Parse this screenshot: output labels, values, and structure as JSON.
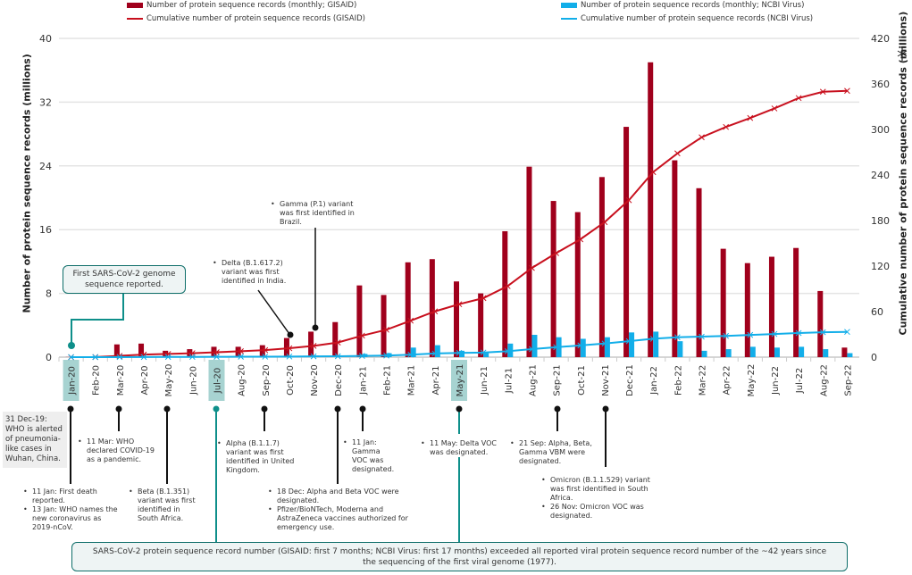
{
  "chart_data": {
    "type": "bar",
    "categories": [
      "Jan-20",
      "Feb-20",
      "Mar-20",
      "Apr-20",
      "May-20",
      "Jun-20",
      "Jul-20",
      "Aug-20",
      "Sep-20",
      "Oct-20",
      "Nov-20",
      "Dec-20",
      "Jan-21",
      "Feb-21",
      "Mar-21",
      "Apr-21",
      "May-21",
      "Jun-21",
      "Jul-21",
      "Aug-21",
      "Sep-21",
      "Oct-21",
      "Nov-21",
      "Dec-21",
      "Jan-22",
      "Feb-22",
      "Mar-22",
      "Apr-22",
      "May-22",
      "Jun-22",
      "Jul-22",
      "Aug-22",
      "Sep-22"
    ],
    "highlighted_categories": [
      "Jan-20",
      "Jul-20",
      "May-21"
    ],
    "ylabel": "Number of protein sequence records (millions)",
    "y2label": "Cumulative number of protein sequence records (millions)",
    "ylim": [
      0,
      40
    ],
    "y2lim": [
      0,
      420
    ],
    "yticks": [
      "0",
      "8",
      "16",
      "24",
      "32",
      "40"
    ],
    "y2ticks": [
      "0",
      "60",
      "120",
      "180",
      "240",
      "300",
      "360",
      "420"
    ],
    "grid": true,
    "legend_position": "top",
    "series": [
      {
        "name": "Number of protein sequence records (monthly; GISAID)",
        "type": "bar",
        "axis": "left",
        "color": "#a0001c",
        "values": [
          0.02,
          0.05,
          1.6,
          1.7,
          0.8,
          1.0,
          1.3,
          1.3,
          1.5,
          2.4,
          3.2,
          4.4,
          9.0,
          7.8,
          11.9,
          12.3,
          9.5,
          8.0,
          15.8,
          23.9,
          19.6,
          18.2,
          22.6,
          28.9,
          37.0,
          24.7,
          21.2,
          13.6,
          11.8,
          12.6,
          13.7,
          8.3,
          1.2
        ]
      },
      {
        "name": "Cumulative number of protein sequence records (GISAID)",
        "type": "line",
        "axis": "right",
        "color": "#c8101e",
        "values": [
          0,
          0.1,
          1.7,
          3.4,
          4.2,
          5.2,
          6.5,
          7.8,
          9.3,
          11.7,
          14.9,
          19.3,
          28.3,
          36.1,
          48.0,
          60.3,
          69.8,
          77.8,
          93.6,
          117.5,
          137.1,
          155.3,
          177.9,
          206.8,
          243.8,
          268.5,
          289.7,
          303.3,
          315.1,
          327.7,
          341.4,
          349.7,
          350.9
        ]
      },
      {
        "name": "Number of protein sequence records (monthly; NCBI Virus)",
        "type": "bar",
        "axis": "left",
        "color": "#12aee9",
        "values": [
          0,
          0,
          0.05,
          0.1,
          0.1,
          0.1,
          0.1,
          0.1,
          0.1,
          0.15,
          0.2,
          0.2,
          0.4,
          0.5,
          1.2,
          1.5,
          0.8,
          0.5,
          1.7,
          2.8,
          2.5,
          2.3,
          2.5,
          3.1,
          3.2,
          2.0,
          0.8,
          1.0,
          1.3,
          1.2,
          1.3,
          1.0,
          0.5
        ]
      },
      {
        "name": "Cumulative number of protein sequence records (NCBI Virus)",
        "type": "line",
        "axis": "right",
        "color": "#12aee9",
        "values": [
          0,
          0,
          0.05,
          0.15,
          0.25,
          0.35,
          0.45,
          0.55,
          0.65,
          0.8,
          1.0,
          1.2,
          1.6,
          2.1,
          3.3,
          4.8,
          5.6,
          6.1,
          7.8,
          10.6,
          13.1,
          15.4,
          17.9,
          21.0,
          24.2,
          26.2,
          27.0,
          28.0,
          29.3,
          30.5,
          31.8,
          32.8,
          33.3
        ]
      }
    ]
  },
  "annotations": {
    "first_genome": "First SARS-CoV-2 genome sequence reported.",
    "delta_india": "Delta (B.1.617.2) variant was first identified in India.",
    "gamma_brazil": "Gamma (P.1) variant was first identified in Brazil.",
    "dec19": "31 Dec-19: WHO is alerted of pneumonia-like cases in Wuhan, China.",
    "jan20": [
      "11 Jan: First death reported.",
      "13 Jan: WHO names the new coronavirus as 2019-nCoV."
    ],
    "mar20": "11 Mar: WHO declared COVID-19 as a pandemic.",
    "beta": "Beta (B.1.351) variant was first identified in South Africa.",
    "alpha": "Alpha (B.1.1.7) variant was first identified in United Kingdom.",
    "dec20": [
      "18 Dec: Alpha and Beta VOC were designated.",
      "Pfizer/BioNTech, Moderna and AstraZeneca vaccines authorized for emergency use."
    ],
    "jan21": "11 Jan: Gamma VOC was designated.",
    "may21": "11 May: Delta VOC was designated.",
    "sep21": "21 Sep: Alpha, Beta, Gamma VBM were designated.",
    "nov21": [
      "Omicron (B.1.1.529) variant was first identified in South Africa.",
      "26 Nov: Omicron VOC was designated."
    ],
    "summary": "SARS-CoV-2 protein sequence record number (GISAID: first 7 months; NCBI Virus: first 17 months) exceeded all reported viral protein sequence record number of the ~42 years since the sequencing of the first viral genome (1977)."
  }
}
